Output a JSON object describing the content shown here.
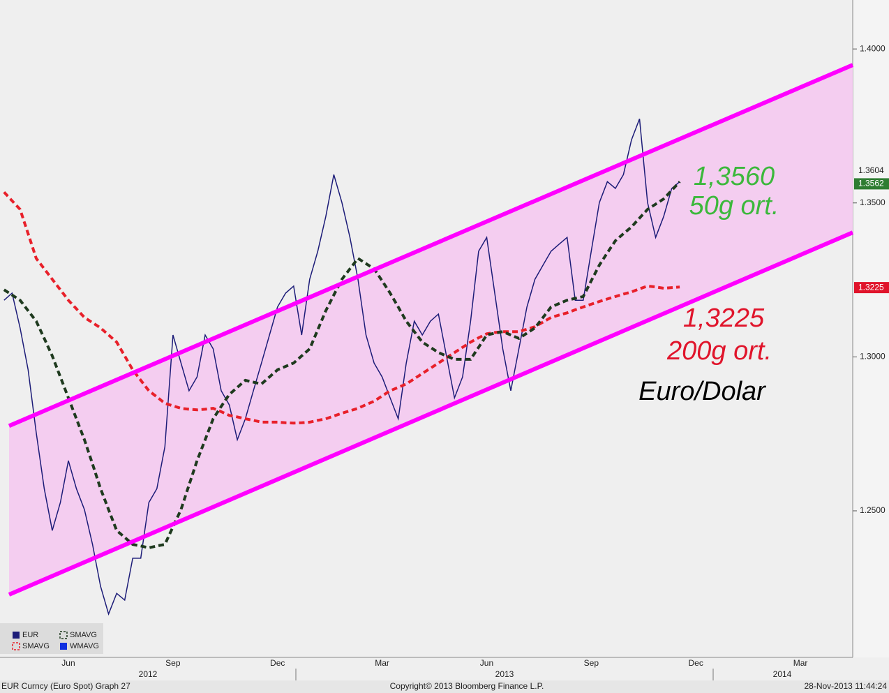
{
  "chart_data": {
    "type": "line",
    "categories": [
      null,
      null,
      null,
      null,
      null,
      null,
      null,
      null,
      "Jun",
      null,
      null,
      null,
      null,
      null,
      null,
      null,
      null,
      null,
      null,
      null,
      null,
      "Sep",
      null,
      null,
      null,
      null,
      null,
      null,
      null,
      null,
      null,
      null,
      null,
      null,
      "Dec",
      null,
      null,
      null,
      null,
      null,
      null,
      null,
      null,
      null,
      null,
      null,
      null,
      "Mar",
      null,
      null,
      null,
      null,
      null,
      null,
      null,
      null,
      null,
      null,
      null,
      null,
      "Jun",
      null,
      null,
      null,
      null,
      null,
      null,
      null,
      null,
      null,
      null,
      null,
      null,
      "Sep",
      null,
      null,
      null,
      null,
      null,
      null,
      null,
      null,
      null,
      null,
      null,
      null,
      "Dec",
      null,
      null,
      null,
      null,
      null,
      null,
      null,
      null,
      null,
      null,
      null,
      null,
      "Mar",
      null,
      null,
      null,
      null,
      null,
      null
    ],
    "years": [
      "2012",
      "2013",
      "2014"
    ],
    "series": [
      {
        "name": "EUR",
        "color": "#1c1c78",
        "dashed": false,
        "values": [
          1.3184,
          1.3207,
          1.3094,
          1.2958,
          1.2754,
          1.2572,
          1.2436,
          1.2527,
          1.2663,
          1.2572,
          1.2504,
          1.2391,
          1.2255,
          1.2165,
          1.2232,
          1.221,
          1.2346,
          1.2346,
          1.2527,
          1.2572,
          1.2708,
          1.3071,
          1.298,
          1.289,
          1.2935,
          1.3071,
          1.3026,
          1.289,
          1.2844,
          1.2731,
          1.2799,
          1.289,
          1.298,
          1.3071,
          1.3162,
          1.3207,
          1.323,
          1.3071,
          1.3252,
          1.3343,
          1.3456,
          1.3592,
          1.3501,
          1.3388,
          1.3252,
          1.3071,
          1.298,
          1.2935,
          1.2867,
          1.2799,
          1.298,
          1.3116,
          1.3071,
          1.3116,
          1.3139,
          1.3003,
          1.2867,
          1.2935,
          1.3116,
          1.3343,
          1.3388,
          1.3207,
          1.3026,
          1.289,
          1.3026,
          1.3162,
          1.3252,
          1.3298,
          1.3343,
          1.3366,
          1.3388,
          1.3184,
          1.3184,
          1.3343,
          1.3501,
          1.3569,
          1.3547,
          1.3592,
          1.3705,
          1.3773,
          1.3501,
          1.3388,
          1.3456,
          1.3547,
          1.3569,
          null,
          null,
          null,
          null,
          null,
          null,
          null,
          null,
          null,
          null,
          null,
          null,
          null,
          null,
          null,
          null,
          null,
          null,
          null,
          null,
          null
        ]
      },
      {
        "name": "SMAVG",
        "color": "#e8202a",
        "dashed": true,
        "values": [
          1.3535,
          1.3507,
          1.3479,
          1.34,
          1.332,
          1.3286,
          1.3252,
          1.3218,
          1.3184,
          1.3156,
          1.3128,
          1.3111,
          1.3094,
          1.3071,
          1.3048,
          1.3003,
          1.2958,
          1.2924,
          1.289,
          1.287,
          1.2849,
          1.2841,
          1.2833,
          1.283,
          1.2828,
          1.283,
          1.2833,
          1.2822,
          1.281,
          1.2805,
          1.2799,
          1.2794,
          1.2788,
          1.2788,
          1.2788,
          1.2786,
          1.2785,
          1.2786,
          1.2788,
          1.2794,
          1.2799,
          1.2808,
          1.2817,
          1.2825,
          1.2833,
          1.2845,
          1.2856,
          1.2873,
          1.289,
          1.2901,
          1.2912,
          1.2929,
          1.2946,
          1.2963,
          1.298,
          1.2997,
          1.3014,
          1.3031,
          1.3048,
          1.3062,
          1.3075,
          1.3079,
          1.3082,
          1.3082,
          1.3082,
          1.309,
          1.3098,
          1.3113,
          1.3128,
          1.3136,
          1.3143,
          1.3153,
          1.3162,
          1.3171,
          1.318,
          1.3188,
          1.3196,
          1.3204,
          1.3211,
          1.3221,
          1.323,
          1.3227,
          1.3223,
          1.3225,
          1.3227,
          null,
          null,
          null,
          null,
          null,
          null,
          null,
          null,
          null,
          null,
          null,
          null,
          null,
          null,
          null,
          null,
          null,
          null,
          null,
          null,
          null
        ]
      },
      {
        "name": "SMAVG",
        "color": "#1e3a1e",
        "dashed": true,
        "values": [
          1.3218,
          1.3201,
          1.3184,
          1.315,
          1.3116,
          1.306,
          1.3003,
          1.2935,
          1.2867,
          1.2799,
          1.2731,
          1.2652,
          1.2572,
          1.2504,
          1.2436,
          1.2414,
          1.2391,
          1.2386,
          1.238,
          1.2386,
          1.2391,
          1.2448,
          1.2504,
          1.2584,
          1.2663,
          1.2731,
          1.2799,
          1.2839,
          1.2878,
          1.2901,
          1.2924,
          1.2918,
          1.2912,
          1.2935,
          1.2958,
          1.2969,
          1.298,
          1.3003,
          1.3026,
          1.3088,
          1.315,
          1.3201,
          1.3252,
          1.3286,
          1.332,
          1.3303,
          1.3286,
          1.3247,
          1.3207,
          1.3162,
          1.3116,
          1.3082,
          1.3048,
          1.3031,
          1.3014,
          1.3003,
          1.2992,
          1.2992,
          1.2992,
          1.3031,
          1.3071,
          1.3077,
          1.3082,
          1.3071,
          1.306,
          1.3077,
          1.3094,
          1.3128,
          1.3162,
          1.3173,
          1.3184,
          1.319,
          1.3196,
          1.3247,
          1.3298,
          1.3338,
          1.3377,
          1.34,
          1.3422,
          1.3451,
          1.3479,
          1.3496,
          1.3513,
          1.3541,
          1.3569,
          null,
          null,
          null,
          null,
          null,
          null,
          null,
          null,
          null,
          null,
          null,
          null,
          null,
          null,
          null,
          null,
          null,
          null,
          null,
          null,
          null
        ]
      }
    ],
    "legend_extra": {
      "name": "WMAVG",
      "color": "#1030e0"
    },
    "channel": {
      "color": "#ff00ff",
      "fill": "#f4cdf0",
      "upper": [
        1.2776,
        1.3948
      ],
      "lower": [
        1.2228,
        1.3404
      ]
    },
    "ylim": [
      1.2024,
      1.4159
    ],
    "yticks": [
      {
        "value": 1.25,
        "label": "1.2500"
      },
      {
        "value": 1.3,
        "label": "1.3000"
      },
      {
        "value": 1.35,
        "label": "1.3500"
      },
      {
        "value": 1.4,
        "label": "1.4000"
      }
    ],
    "last_labels": [
      {
        "value": 1.3604,
        "label": "1.3604",
        "color": null
      },
      {
        "value": 1.3562,
        "label": "1.3562",
        "color": "#2e7d32"
      },
      {
        "value": 1.3225,
        "label": "1.3225",
        "color": "#e0142b"
      }
    ],
    "annotations": [
      {
        "text": "1,3560",
        "color": "#3cb83c"
      },
      {
        "text": "50g ort.",
        "color": "#3cb83c"
      },
      {
        "text": "1,3225",
        "color": "#e0142b"
      },
      {
        "text": "200g ort.",
        "color": "#e0142b"
      },
      {
        "text": "Euro/Dolar",
        "color": "#000000"
      }
    ],
    "footer": {
      "left": "EUR Curncy (Euro Spot) Graph 27",
      "center": "Copyright© 2013 Bloomberg Finance L.P.",
      "right": "28-Nov-2013 11:44:24"
    }
  }
}
